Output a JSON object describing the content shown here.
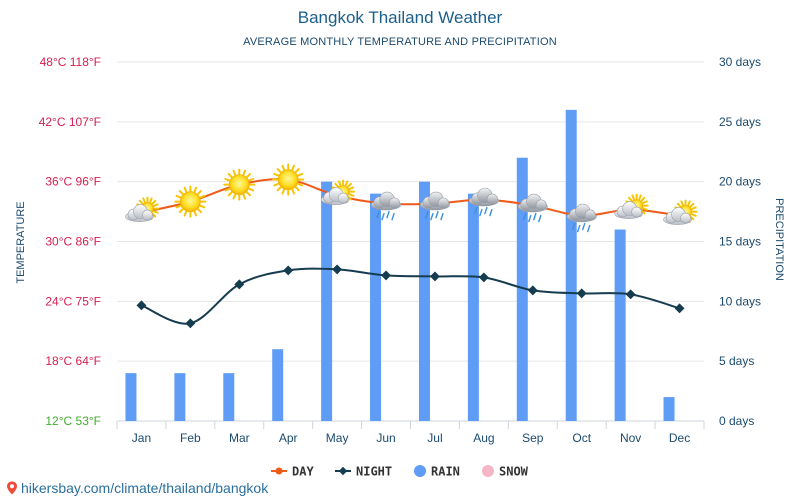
{
  "title": "Bangkok Thailand Weather",
  "subtitle": "AVERAGE MONTHLY TEMPERATURE AND PRECIPITATION",
  "footer_url": "hikersbay.com/climate/thailand/bangkok",
  "colors": {
    "day": "#ef5a1a",
    "night": "#163c4f",
    "rain": "#5f9cf5",
    "snow": "#f5b6c8",
    "left_axis_label": "#d41f50",
    "left_axis_bottom": "#3fae2a",
    "right_axis_label": "#1b4a6e",
    "grid": "#e6e6e6"
  },
  "chart_data": {
    "type": "bar+line",
    "categories": [
      "Jan",
      "Feb",
      "Mar",
      "Apr",
      "May",
      "Jun",
      "Jul",
      "Aug",
      "Sep",
      "Oct",
      "Nov",
      "Dec"
    ],
    "series": [
      {
        "name": "DAY",
        "type": "line",
        "axis": "temperature",
        "unit": "°C",
        "values": [
          32.9,
          34.0,
          35.7,
          36.2,
          34.6,
          33.8,
          33.8,
          34.2,
          33.6,
          32.6,
          33.2,
          32.6
        ]
      },
      {
        "name": "NIGHT",
        "type": "line",
        "axis": "temperature",
        "unit": "°C",
        "values": [
          23.6,
          21.8,
          25.7,
          27.1,
          27.2,
          26.6,
          26.5,
          26.4,
          25.1,
          24.8,
          24.7,
          23.3
        ]
      },
      {
        "name": "RAIN",
        "type": "bar",
        "axis": "precipitation",
        "unit": "days",
        "values": [
          4,
          4,
          4,
          6,
          20,
          19,
          20,
          19,
          22,
          26,
          16,
          2
        ]
      },
      {
        "name": "SNOW",
        "type": "bar",
        "axis": "precipitation",
        "unit": "days",
        "values": [
          0,
          0,
          0,
          0,
          0,
          0,
          0,
          0,
          0,
          0,
          0,
          0
        ]
      }
    ],
    "weather_icons": [
      "sun-cloud-icon",
      "sun-icon",
      "sun-icon",
      "sun-icon",
      "sun-cloud-icon",
      "rain-cloud-icon",
      "rain-cloud-icon",
      "rain-cloud-icon",
      "rain-cloud-icon",
      "rain-cloud-icon",
      "sun-cloud-icon",
      "sun-cloud-icon"
    ],
    "left_axis": {
      "label": "TEMPERATURE",
      "range": [
        12,
        48
      ],
      "ticks": [
        12,
        18,
        24,
        30,
        36,
        42,
        48
      ],
      "tick_labels": [
        "12°C 53°F",
        "18°C 64°F",
        "24°C 75°F",
        "30°C 86°F",
        "36°C 96°F",
        "42°C 107°F",
        "48°C 118°F"
      ]
    },
    "right_axis": {
      "label": "PRECIPITATION",
      "range": [
        0,
        30
      ],
      "ticks": [
        0,
        5,
        10,
        15,
        20,
        25,
        30
      ],
      "tick_labels": [
        "0 days",
        "5 days",
        "10 days",
        "15 days",
        "20 days",
        "25 days",
        "30 days"
      ]
    },
    "grid": true,
    "legend": [
      "DAY",
      "NIGHT",
      "RAIN",
      "SNOW"
    ],
    "legend_position": "bottom-center"
  }
}
